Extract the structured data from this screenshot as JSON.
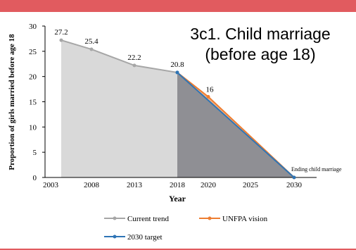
{
  "colors": {
    "banner": "#e15b5f",
    "current_trend": "#a6a6a6",
    "current_fill": "#d9d9d9",
    "unfpa_vision": "#ed7d31",
    "unfpa_fill": "#f4b183",
    "target_2030": "#2e75b6",
    "target_fill": "#8f8f94"
  },
  "chart_data": {
    "type": "area",
    "title_line1": "3c1. Child marriage",
    "title_line2": "(before age 18)",
    "xlabel": "Year",
    "ylabel": "Proportion of girls married before age 18",
    "ylim": [
      0,
      30
    ],
    "yticks": [
      "0",
      "5",
      "10",
      "15",
      "20",
      "25",
      "30"
    ],
    "xticks": [
      "2003",
      "2008",
      "2013",
      "2018",
      "2020",
      "2025",
      "2030"
    ],
    "series": [
      {
        "name": "Current trend",
        "x": [
          "2003",
          "2008",
          "2013",
          "2018"
        ],
        "values": [
          27.2,
          25.4,
          22.2,
          20.8
        ],
        "labels": [
          "27.2",
          "25.4",
          "22.2",
          "20.8"
        ]
      },
      {
        "name": "UNFPA vision",
        "x": [
          "2018",
          "2020",
          "2030"
        ],
        "values": [
          20.8,
          16,
          0
        ],
        "labels": [
          "",
          "16",
          ""
        ]
      },
      {
        "name": "2030 target",
        "x": [
          "2018",
          "2030"
        ],
        "values": [
          20.8,
          0
        ]
      }
    ],
    "annotation": "Ending child marriage",
    "legend": {
      "placement": "bottom",
      "items": [
        "Current trend",
        "UNFPA vision",
        "2030 target"
      ]
    },
    "grid": false
  }
}
